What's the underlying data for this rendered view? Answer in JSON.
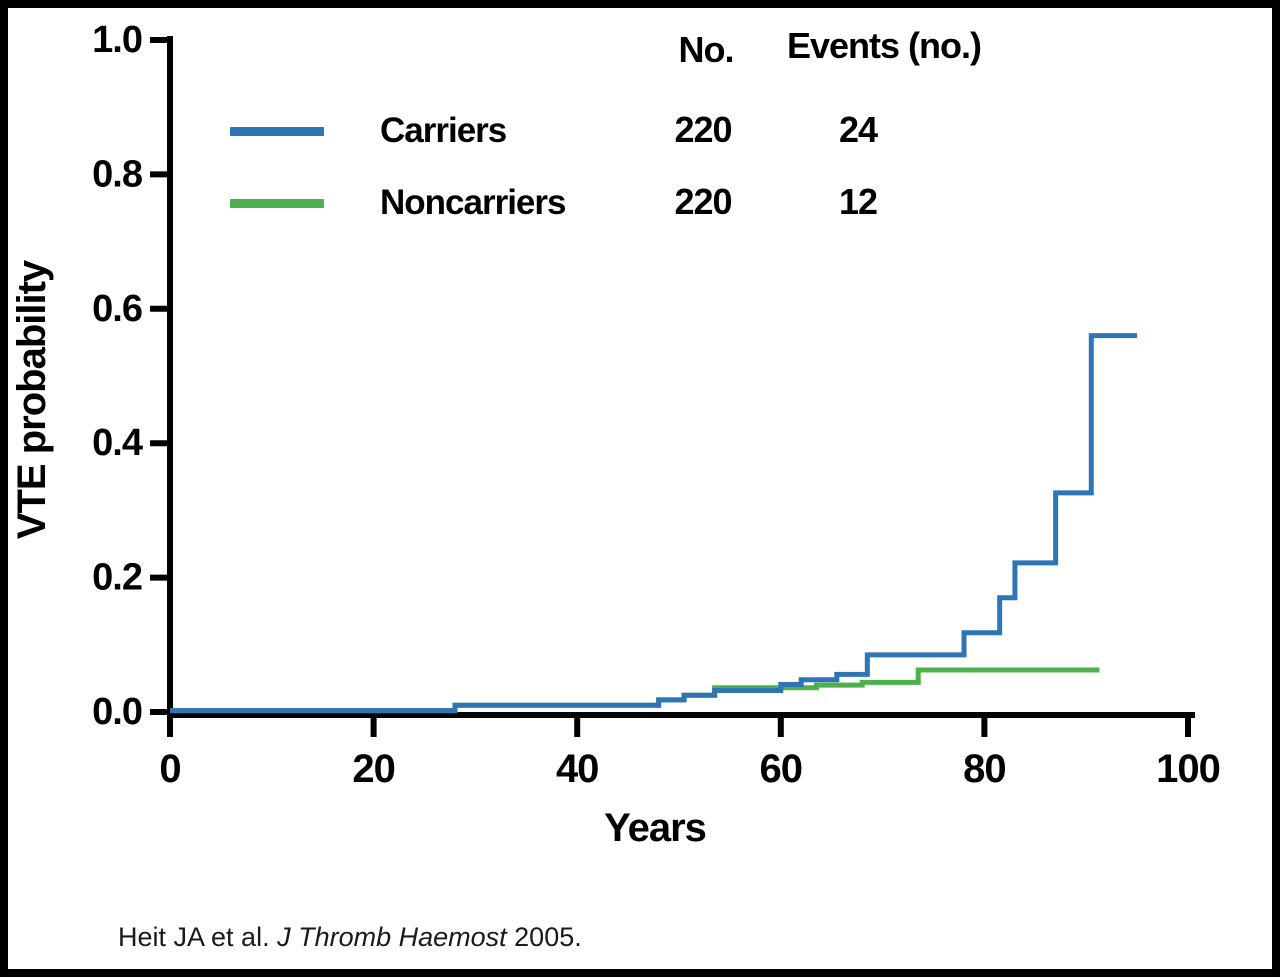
{
  "citation": {
    "prefix": "Heit JA et al. ",
    "journal": "J Thromb Haemost",
    "suffix": " 2005."
  },
  "legend": {
    "headers": {
      "no": "No.",
      "events": "Events (no.)"
    }
  },
  "chart_data": {
    "type": "line",
    "style": "step",
    "title": "",
    "xlabel": "Years",
    "ylabel": "VTE probability",
    "xlim": [
      0,
      100
    ],
    "ylim": [
      0,
      1.0
    ],
    "grid": false,
    "legend_position": "top-center",
    "xticks": [
      0,
      20,
      40,
      60,
      80,
      100
    ],
    "xtick_labels": [
      "0",
      "20",
      "40",
      "60",
      "80",
      "100"
    ],
    "ytick_values": [
      0,
      0.2,
      0.4,
      0.6,
      0.8,
      1.0
    ],
    "ytick_labels": [
      "0.0",
      "0.2",
      "0.4",
      "0.6",
      "0.8",
      "1.0"
    ],
    "series": [
      {
        "name": "Carriers",
        "color": "#2e75b6",
        "n": "220",
        "events": "24",
        "steps": [
          [
            0,
            0.002
          ],
          [
            28,
            0.01
          ],
          [
            48,
            0.018
          ],
          [
            50.5,
            0.025
          ],
          [
            53.5,
            0.032
          ],
          [
            60,
            0.041
          ],
          [
            62,
            0.048
          ],
          [
            65.5,
            0.056
          ],
          [
            68.5,
            0.085
          ],
          [
            78,
            0.118
          ],
          [
            81.5,
            0.17
          ],
          [
            83,
            0.222
          ],
          [
            87,
            0.326
          ],
          [
            90.5,
            0.56
          ]
        ],
        "end_x": 95
      },
      {
        "name": "Noncarriers",
        "color": "#4db04c",
        "n": "220",
        "events": "12",
        "steps": [
          [
            0,
            0.002
          ],
          [
            28,
            0.01
          ],
          [
            48,
            0.018
          ],
          [
            50.5,
            0.025
          ],
          [
            53.5,
            0.036
          ],
          [
            63.5,
            0.04
          ],
          [
            68,
            0.044
          ],
          [
            73.5,
            0.0625
          ]
        ],
        "end_x": 91.3
      }
    ]
  }
}
